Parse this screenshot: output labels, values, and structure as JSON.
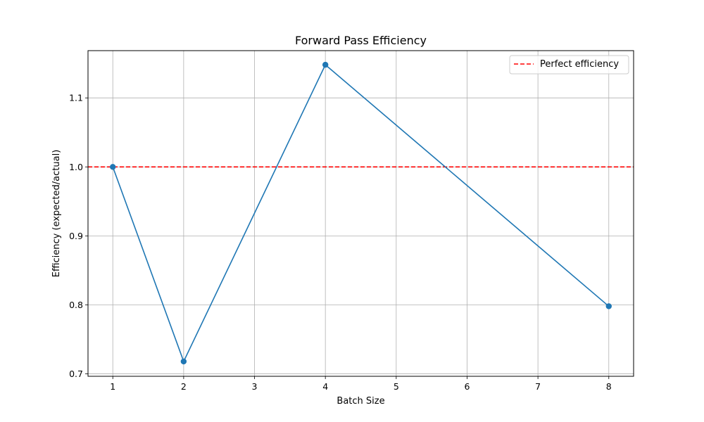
{
  "chart_data": {
    "type": "line",
    "title": "Forward Pass Efficiency",
    "xlabel": "Batch Size",
    "ylabel": "Efficiency (expected/actual)",
    "xlim": [
      0.65,
      8.35
    ],
    "ylim": [
      0.6965,
      1.1685
    ],
    "xticks": [
      1,
      2,
      3,
      4,
      5,
      6,
      7,
      8
    ],
    "yticks": [
      0.7,
      0.8,
      0.9,
      1.0,
      1.1
    ],
    "ytick_labels": [
      "0.7",
      "0.8",
      "0.9",
      "1.0",
      "1.1"
    ],
    "grid": true,
    "legend_placement": "top-right",
    "series": [
      {
        "x": [
          1,
          2,
          4,
          8
        ],
        "y": [
          1.0,
          0.718,
          1.148,
          0.798
        ],
        "color": "#1f77b4",
        "marker": "circle"
      }
    ],
    "reference_lines": [
      {
        "name": "Perfect efficiency",
        "orientation": "horizontal",
        "y": 1.0,
        "color": "#ff0000",
        "style": "dashed"
      }
    ]
  }
}
